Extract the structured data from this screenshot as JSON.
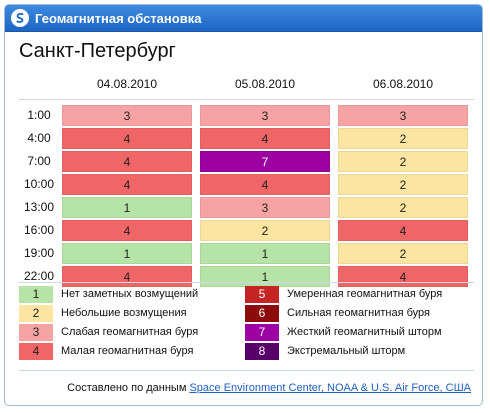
{
  "header": {
    "title": "Геомагнитная обстановка"
  },
  "city": "Санкт-Петербург",
  "dates": [
    "04.08.2010",
    "05.08.2010",
    "06.08.2010"
  ],
  "times": [
    "1:00",
    "4:00",
    "7:00",
    "10:00",
    "13:00",
    "16:00",
    "19:00",
    "22:00"
  ],
  "levels": [
    [
      3,
      3,
      3
    ],
    [
      4,
      4,
      2
    ],
    [
      4,
      7,
      2
    ],
    [
      4,
      4,
      2
    ],
    [
      1,
      3,
      2
    ],
    [
      4,
      2,
      4
    ],
    [
      1,
      1,
      2
    ],
    [
      4,
      1,
      4
    ]
  ],
  "level_colors": {
    "1": "#b6e3a6",
    "2": "#fbe5a0",
    "3": "#f7a3a3",
    "4": "#f06565",
    "5": "#c42424",
    "6": "#8c0c0c",
    "7": "#9c00a3",
    "8": "#58006a"
  },
  "legend": [
    {
      "level": "1",
      "label": "Нет заметных возмущений"
    },
    {
      "level": "2",
      "label": "Небольшие возмущения"
    },
    {
      "level": "3",
      "label": "Слабая геомагнитная буря"
    },
    {
      "level": "4",
      "label": "Малая геомагнитная буря"
    },
    {
      "level": "5",
      "label": "Умеренная геомагнитная буря"
    },
    {
      "level": "6",
      "label": "Сильная геомагнитная буря"
    },
    {
      "level": "7",
      "label": "Жесткий геомагнитный шторм"
    },
    {
      "level": "8",
      "label": "Экстремальный шторм"
    }
  ],
  "footer": {
    "prefix": "Составлено по данным",
    "link": "Space Environment Center, NOAA & U.S. Air Force, США"
  }
}
